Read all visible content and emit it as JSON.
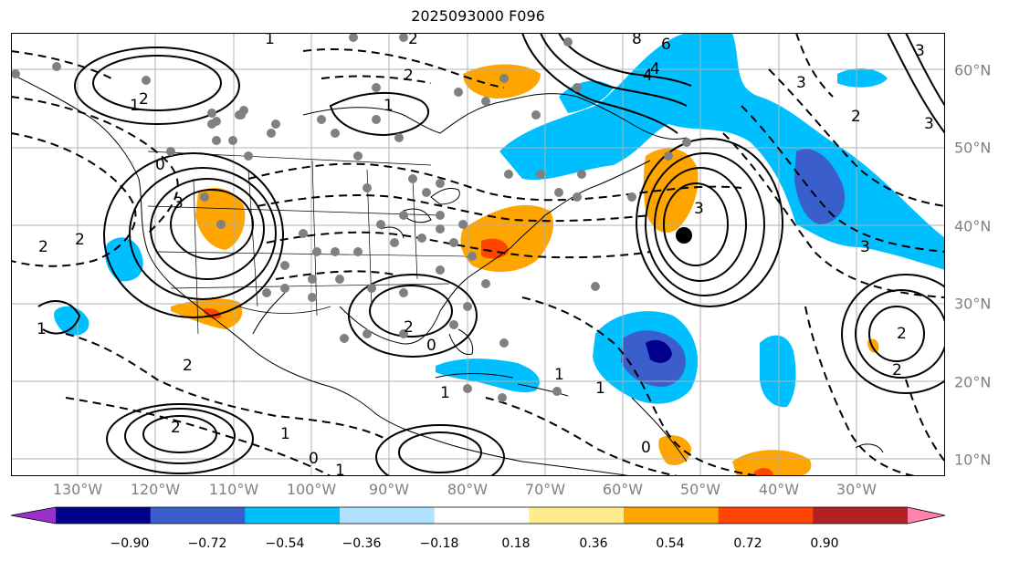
{
  "title": "2025093000 F096",
  "lon_labels": [
    "130°W",
    "120°W",
    "110°W",
    "100°W",
    "90°W",
    "80°W",
    "70°W",
    "60°W",
    "50°W",
    "40°W",
    "30°W"
  ],
  "lat_labels": [
    "60°N",
    "50°N",
    "40°N",
    "30°N",
    "20°N",
    "10°N"
  ],
  "colorbar": {
    "ticks": [
      "−0.90",
      "−0.72",
      "−0.54",
      "−0.36",
      "−0.18",
      "0.18",
      "0.36",
      "0.54",
      "0.72",
      "0.90"
    ],
    "colors": [
      "#9932cc",
      "#00008b",
      "#3a5fcd",
      "#00bfff",
      "#b0e2ff",
      "#ffffff",
      "#ffec8b",
      "#ffa500",
      "#ff4500",
      "#b22222",
      "#ff82ab"
    ]
  },
  "contour_labels": {
    "positive": [
      "1",
      "2",
      "3",
      "1",
      "2",
      "1",
      "2",
      "3",
      "4",
      "6",
      "8",
      "2",
      "3",
      "1",
      "2",
      "1",
      "2",
      "3",
      "2"
    ],
    "negative": [
      "0",
      "1",
      "2",
      "2",
      "0",
      "1",
      "3",
      "2",
      "3",
      "4",
      "1",
      "2",
      "0",
      "1",
      "0"
    ]
  }
}
